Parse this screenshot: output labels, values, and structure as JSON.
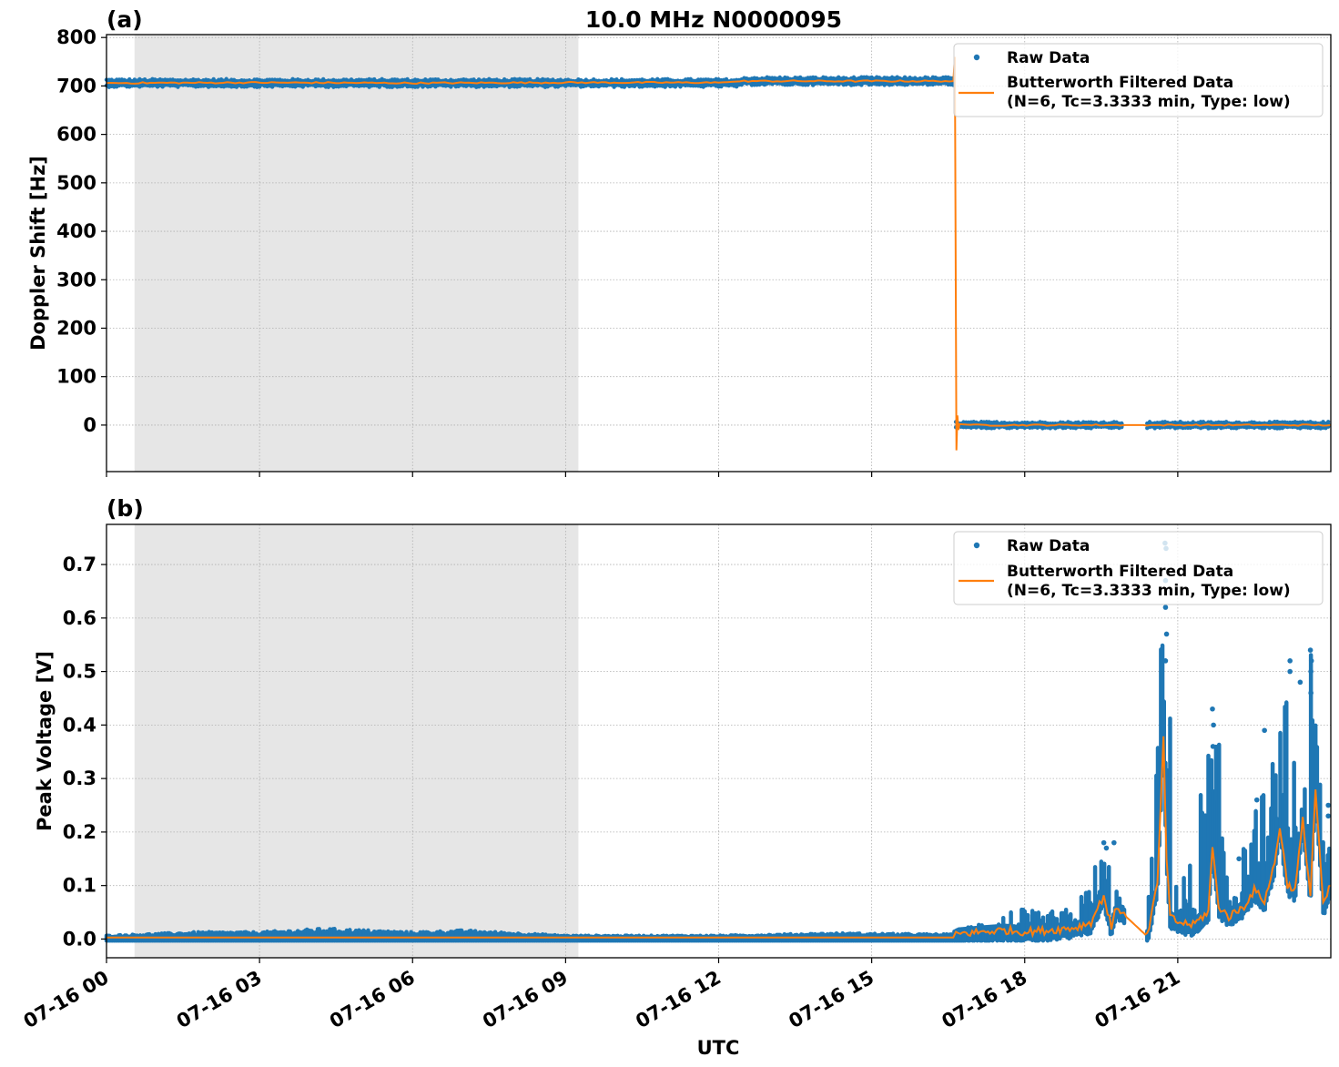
{
  "figure": {
    "title": "10.0 MHz N0000095",
    "xlabel": "UTC",
    "colors": {
      "raw": "#1f77b4",
      "filtered": "#ff7f0e",
      "shade": "#e6e6e6",
      "grid": "#b0b0b0"
    }
  },
  "chart_data": [
    {
      "panel": "(a)",
      "type": "scatter",
      "title": "10.0 MHz N0000095",
      "xlabel": "",
      "ylabel": "Doppler Shift [Hz]",
      "ylim": [
        -96,
        806
      ],
      "yticks": [
        0,
        100,
        200,
        300,
        400,
        500,
        600,
        700,
        800
      ],
      "xlim_hours": [
        0,
        24
      ],
      "xticks": [
        "07-16 00",
        "07-16 03",
        "07-16 06",
        "07-16 09",
        "07-16 12",
        "07-16 15",
        "07-16 18",
        "07-16 21"
      ],
      "grid": true,
      "legend_position": "upper right",
      "shaded_region_hours": [
        0.55,
        9.25
      ],
      "legend": [
        "Raw Data",
        "Butterworth Filtered Data\n(N=6, Tc=3.3333 min, Type: low)"
      ],
      "series": [
        {
          "name": "Raw Data",
          "style": "points",
          "segments": [
            {
              "x_hours": [
                0.0,
                12.5
              ],
              "value": 706,
              "spread": 6
            },
            {
              "x_hours": [
                12.5,
                16.62
              ],
              "value": 710,
              "spread": 6
            },
            {
              "x_hours": [
                16.65,
                19.95
              ],
              "value": 0,
              "spread": 5
            },
            {
              "x_hours": [
                20.4,
                24.0
              ],
              "value": 0,
              "spread": 5
            }
          ]
        },
        {
          "name": "Butterworth Filtered Data (N=6, Tc=3.3333 min, Type: low)",
          "style": "line",
          "x_hours": [
            0,
            3,
            6,
            9,
            12,
            12.5,
            15,
            16.6,
            16.63,
            16.66,
            16.68,
            16.7,
            16.72,
            17,
            19.95,
            20.4,
            24
          ],
          "values": [
            706,
            707,
            706,
            707,
            707,
            710,
            710,
            710,
            760,
            -52,
            20,
            -10,
            2,
            0,
            0,
            0,
            0
          ]
        }
      ]
    },
    {
      "panel": "(b)",
      "type": "scatter",
      "xlabel": "UTC",
      "ylabel": "Peak Voltage [V]",
      "ylim": [
        -0.035,
        0.775
      ],
      "yticks": [
        0.0,
        0.1,
        0.2,
        0.3,
        0.4,
        0.5,
        0.6,
        0.7
      ],
      "ytick_labels": [
        "0.0",
        "0.1",
        "0.2",
        "0.3",
        "0.4",
        "0.5",
        "0.6",
        "0.7"
      ],
      "xlim_hours": [
        0,
        24
      ],
      "xticks": [
        "07-16 00",
        "07-16 03",
        "07-16 06",
        "07-16 09",
        "07-16 12",
        "07-16 15",
        "07-16 18",
        "07-16 21"
      ],
      "grid": true,
      "legend_position": "upper right",
      "shaded_region_hours": [
        0.55,
        9.25
      ],
      "legend": [
        "Raw Data",
        "Butterworth Filtered Data\n(N=6, Tc=3.3333 min, Type: low)"
      ],
      "series": [
        {
          "name": "Raw Data",
          "style": "points",
          "x_hours": [
            0,
            1.8,
            3,
            4.3,
            6,
            7.0,
            9,
            10,
            12,
            14.3,
            16.6,
            17.2,
            17.8,
            18.3,
            19,
            19.5,
            19.6,
            19.95,
            20.4,
            20.75,
            20.8,
            20.9,
            21.2,
            21.65,
            21.7,
            22.2,
            22.6,
            23.0,
            23.2,
            23.4,
            23.6,
            23.7,
            24.0
          ],
          "values": [
            0.006,
            0.012,
            0.012,
            0.018,
            0.012,
            0.015,
            0.006,
            0.006,
            0.006,
            0.01,
            0.008,
            0.04,
            0.06,
            0.05,
            0.06,
            0.18,
            0.18,
            0.05,
            0.02,
            0.74,
            0.7,
            0.2,
            0.12,
            0.44,
            0.43,
            0.15,
            0.27,
            0.39,
            0.52,
            0.3,
            0.54,
            0.45,
            0.25
          ]
        },
        {
          "name": "Butterworth Filtered Data (N=6, Tc=3.3333 min, Type: low)",
          "style": "line",
          "x_hours": [
            0,
            9.25,
            16.6,
            16.7,
            17.2,
            17.6,
            18.0,
            18.5,
            19.0,
            19.3,
            19.55,
            19.7,
            19.8,
            19.95,
            20.4,
            20.6,
            20.72,
            20.78,
            20.85,
            21.0,
            21.3,
            21.6,
            21.68,
            21.8,
            22.0,
            22.3,
            22.5,
            22.7,
            22.9,
            23.0,
            23.15,
            23.3,
            23.45,
            23.6,
            23.7,
            23.85,
            24.0
          ],
          "values": [
            0.003,
            0.003,
            0.003,
            0.008,
            0.012,
            0.015,
            0.012,
            0.015,
            0.02,
            0.03,
            0.08,
            0.02,
            0.06,
            0.045,
            0.005,
            0.1,
            0.37,
            0.15,
            0.04,
            0.03,
            0.025,
            0.05,
            0.17,
            0.06,
            0.04,
            0.06,
            0.09,
            0.07,
            0.14,
            0.21,
            0.1,
            0.09,
            0.22,
            0.08,
            0.28,
            0.06,
            0.1
          ]
        }
      ]
    }
  ],
  "panels": {
    "a": {
      "label": "(a)",
      "ylabel": "Doppler Shift [Hz]",
      "yticks": [
        "0",
        "100",
        "200",
        "300",
        "400",
        "500",
        "600",
        "700",
        "800"
      ],
      "legend": {
        "raw": "Raw Data",
        "filtered_line1": "Butterworth Filtered Data",
        "filtered_line2": "(N=6, Tc=3.3333 min, Type: low)"
      }
    },
    "b": {
      "label": "(b)",
      "ylabel": "Peak Voltage [V]",
      "yticks": [
        "0.0",
        "0.1",
        "0.2",
        "0.3",
        "0.4",
        "0.5",
        "0.6",
        "0.7"
      ],
      "legend": {
        "raw": "Raw Data",
        "filtered_line1": "Butterworth Filtered Data",
        "filtered_line2": "(N=6, Tc=3.3333 min, Type: low)"
      }
    },
    "xticks": [
      "07-16 00",
      "07-16 03",
      "07-16 06",
      "07-16 09",
      "07-16 12",
      "07-16 15",
      "07-16 18",
      "07-16 21"
    ]
  }
}
